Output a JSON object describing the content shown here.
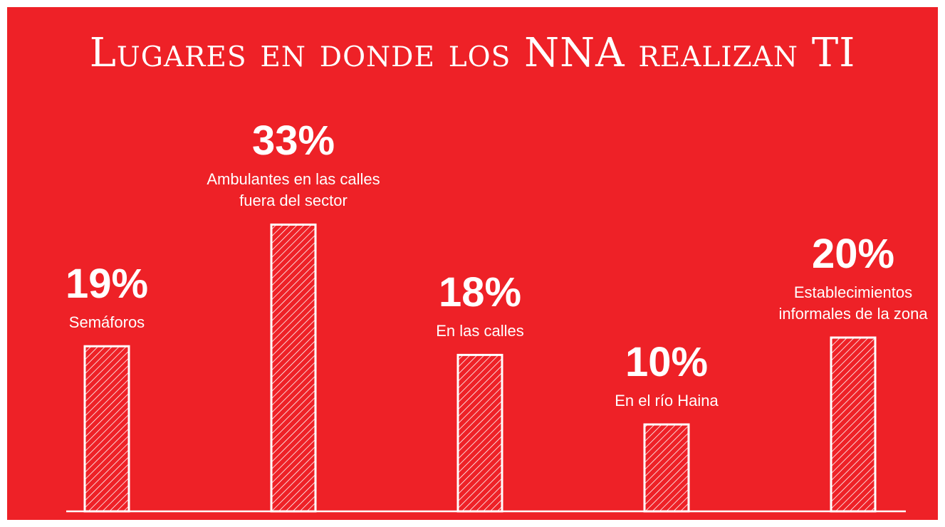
{
  "chart_data": {
    "type": "bar",
    "title": "Lugares en donde los NNA realizan TI",
    "categories": [
      "Semáforos",
      "Ambulantes en las calles fuera del sector",
      "En las calles",
      "En el río Haina",
      "Establecimientos informales de la zona"
    ],
    "values": [
      19,
      33,
      18,
      10,
      20
    ],
    "value_labels": [
      "19%",
      "33%",
      "18%",
      "10%",
      "20%"
    ],
    "color": "#ffffff"
  }
}
